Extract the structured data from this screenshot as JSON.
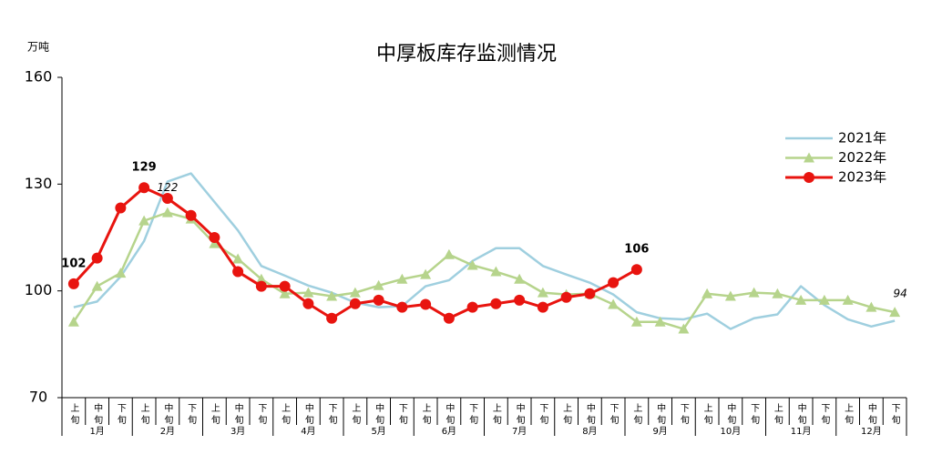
{
  "chart_data": {
    "type": "line",
    "title": "中厚板库存监测情况",
    "y_unit": "万吨",
    "categories": [
      "上旬",
      "中旬",
      "下旬",
      "上旬",
      "中旬",
      "下旬",
      "上旬",
      "中旬",
      "下旬",
      "上旬",
      "中旬",
      "下旬",
      "上旬",
      "中旬",
      "下旬",
      "上旬",
      "中旬",
      "下旬",
      "上旬",
      "中旬",
      "下旬",
      "上旬",
      "中旬",
      "下旬",
      "上旬",
      "中旬",
      "下旬",
      "上旬",
      "中旬",
      "下旬",
      "上旬",
      "中旬",
      "下旬",
      "上旬",
      "中旬",
      "下旬"
    ],
    "months": [
      "1月",
      "2月",
      "3月",
      "4月",
      "5月",
      "6月",
      "7月",
      "8月",
      "9月",
      "10月",
      "11月",
      "12月"
    ],
    "ylim": [
      70,
      160
    ],
    "yticks": [
      70,
      100,
      130,
      160
    ],
    "grid": false,
    "legend": "upper right",
    "series": [
      {
        "name": "2021年",
        "color": "#9fcfdf",
        "marker": "none",
        "values": [
          95.4,
          97,
          104,
          114,
          130.7,
          133,
          125,
          117,
          107,
          104.3,
          101.5,
          99.5,
          96.7,
          95.4,
          95.7,
          101.3,
          103,
          108.4,
          112,
          112,
          107,
          104.6,
          102.3,
          99,
          94,
          92.3,
          92,
          93.6,
          89.3,
          92.3,
          93.4,
          101.3,
          96,
          92,
          90,
          91.6
        ]
      },
      {
        "name": "2022年",
        "color": "#b6d48c",
        "marker": "triangle",
        "values": [
          91.3,
          101.3,
          105,
          119.7,
          122,
          120.2,
          113.3,
          109,
          103.3,
          99.2,
          99.5,
          98.5,
          99.5,
          101.5,
          103.3,
          104.6,
          110.2,
          107.2,
          105.4,
          103.3,
          99.5,
          99,
          99.2,
          96.2,
          91.3,
          91.3,
          89.3,
          99.2,
          98.5,
          99.5,
          99.2,
          97.4,
          97.4,
          97.4,
          95.4,
          94
        ],
        "value_labels": [
          null,
          null,
          null,
          null,
          "122",
          null,
          null,
          null,
          null,
          null,
          null,
          null,
          null,
          null,
          null,
          null,
          null,
          null,
          null,
          null,
          null,
          null,
          null,
          null,
          null,
          null,
          null,
          null,
          null,
          null,
          null,
          null,
          null,
          null,
          null,
          "94"
        ]
      },
      {
        "name": "2023年",
        "color": "#e8140f",
        "marker": "circle",
        "values": [
          102,
          109.2,
          123.3,
          129,
          126,
          121.2,
          115,
          105.4,
          101.3,
          101.3,
          96.4,
          92.3,
          96.4,
          97.4,
          95.4,
          96.2,
          92.3,
          95.4,
          96.4,
          97.4,
          95.4,
          98.2,
          99.2,
          102.3,
          106,
          null,
          null,
          null,
          null,
          null,
          null,
          null,
          null,
          null,
          null,
          null
        ],
        "value_labels": [
          "102",
          null,
          null,
          "129",
          null,
          null,
          null,
          null,
          null,
          null,
          null,
          null,
          null,
          null,
          null,
          null,
          null,
          null,
          null,
          null,
          null,
          null,
          null,
          null,
          "106",
          null,
          null,
          null,
          null,
          null,
          null,
          null,
          null,
          null,
          null,
          null
        ]
      }
    ]
  }
}
